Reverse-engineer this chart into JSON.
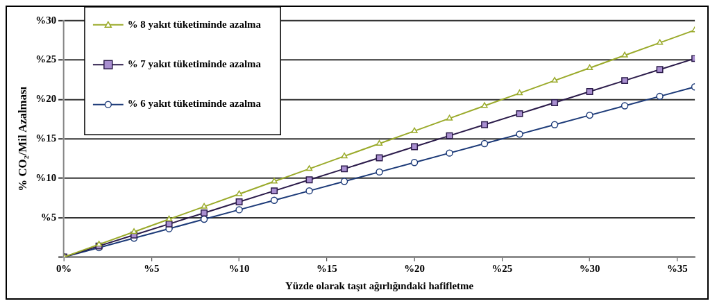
{
  "chart_data": {
    "type": "line",
    "xlabel": "Yüzde olarak taşıt ağırlığındaki hafifletme",
    "ylabel": "% CO₂/Mil Azalması",
    "x": [
      0,
      2,
      4,
      6,
      8,
      10,
      12,
      14,
      16,
      18,
      20,
      22,
      24,
      26,
      28,
      30,
      32,
      34,
      36
    ],
    "series": [
      {
        "name": "% 8 yakıt tüketiminde azalma",
        "color": "#9aaa2a",
        "marker": "triangle",
        "values": [
          0,
          1.6,
          3.2,
          4.8,
          6.4,
          8,
          9.6,
          11.2,
          12.8,
          14.4,
          16,
          17.6,
          19.2,
          20.8,
          22.4,
          24,
          25.6,
          27.2,
          28.8
        ]
      },
      {
        "name": "% 7 yakıt tüketiminde azalma",
        "color": "#2b1b4a",
        "marker": "square",
        "values": [
          0,
          1.4,
          2.8,
          4.2,
          5.6,
          7,
          8.4,
          9.8,
          11.2,
          12.6,
          14,
          15.4,
          16.8,
          18.2,
          19.6,
          21,
          22.4,
          23.8,
          25.2
        ]
      },
      {
        "name": "% 6 yakıt tüketiminde azalma",
        "color": "#1c3a78",
        "marker": "circle",
        "values": [
          0,
          1.2,
          2.4,
          3.6,
          4.8,
          6,
          7.2,
          8.4,
          9.6,
          10.8,
          12,
          13.2,
          14.4,
          15.6,
          16.8,
          18,
          19.2,
          20.4,
          21.6
        ]
      }
    ],
    "xlim": [
      0,
      36
    ],
    "xticks": [
      {
        "value": 0,
        "label": "0%"
      },
      {
        "value": 5,
        "label": "%5"
      },
      {
        "value": 10,
        "label": "%10"
      },
      {
        "value": 15,
        "label": "%15"
      },
      {
        "value": 20,
        "label": "%20"
      },
      {
        "value": 25,
        "label": "%25"
      },
      {
        "value": 30,
        "label": "%30"
      },
      {
        "value": 35,
        "label": "%35"
      }
    ],
    "ylim": [
      0,
      30
    ],
    "yticks": [
      {
        "value": 0,
        "label": null
      },
      {
        "value": 5,
        "label": "%5"
      },
      {
        "value": 10,
        "label": "%10"
      },
      {
        "value": 15,
        "label": "%15"
      },
      {
        "value": 20,
        "label": "%20"
      },
      {
        "value": 25,
        "label": "%25"
      },
      {
        "value": 30,
        "label": "%30"
      }
    ],
    "grid": "y",
    "legend": "top left",
    "line_style": "solid"
  }
}
